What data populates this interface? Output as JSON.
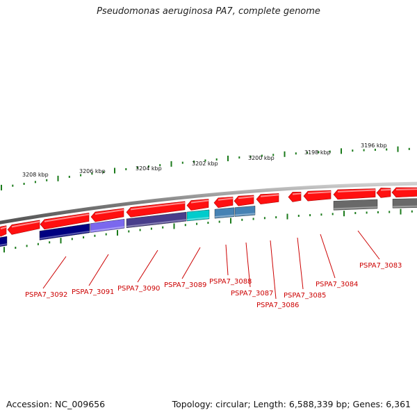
{
  "title": "Pseudomonas aeruginosa PA7, complete genome",
  "accession": "Accession: NC_009656",
  "topology": "Topology: circular; Length: 6,588,339 bp; Genes: 6,361",
  "colors": {
    "backbone": "#8a8a8a",
    "forward_gene": "#ff1010",
    "tick": "#1a7a1a",
    "label": "#cc0000"
  },
  "kbp_labels": [
    "3208 kbp",
    "3206 kbp",
    "3204 kbp",
    "3202 kbp",
    "3200 kbp",
    "3198 kbp",
    "3196 kbp"
  ],
  "gene_labels": [
    "PSPA7_3092",
    "PSPA7_3091",
    "PSPA7_3090",
    "PSPA7_3089",
    "PSPA7_3088",
    "PSPA7_3087",
    "PSPA7_3086",
    "PSPA7_3085",
    "PSPA7_3084",
    "PSPA7_3083"
  ],
  "feature_colors": [
    "#000080",
    "#7b68ee",
    "#483d8b",
    "#00cccc",
    "#4682b4",
    "#4682b4",
    "#696969",
    "#696969"
  ]
}
